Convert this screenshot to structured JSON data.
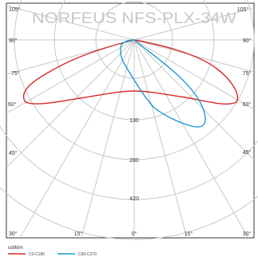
{
  "title": "NORFEUS NFS-PLX-34W",
  "unit": "cd/klm",
  "angle_labels": {
    "top_left_105": "105°",
    "top_right_105": "105°",
    "left_90": "90°",
    "right_90": "90°",
    "left_75": "75°",
    "right_75": "75°",
    "left_60": "60°",
    "right_60": "60°",
    "left_45": "45°",
    "right_45": "45°",
    "bottom_left_30": "30°",
    "bottom_right_30": "30°",
    "bottom_15_left": "15°",
    "bottom_15_right": "15°",
    "bottom_0": "0°"
  },
  "scale_labels": [
    "130",
    "280",
    "420"
  ],
  "legend": [
    {
      "label": "C0-C180",
      "color": "#d62a2a"
    },
    {
      "label": "C90-C270",
      "color": "#1a9ad6"
    }
  ],
  "colors": {
    "grid": "#c8c8c8",
    "frame": "#333333",
    "title": "#c7c7c7",
    "c0": "#d62a2a",
    "c90": "#1a9ad6"
  }
}
